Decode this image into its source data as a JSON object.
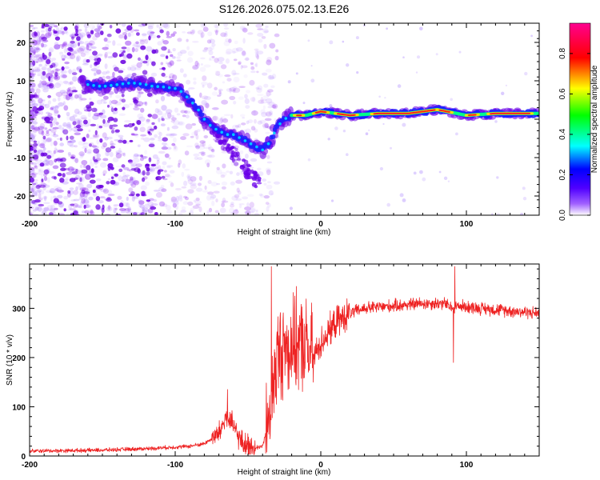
{
  "title": "S126.2026.075.02.13.E26",
  "chart_data": [
    {
      "type": "heatmap",
      "xlabel": "Height of straight line (km)",
      "ylabel": "Frequency (Hz)",
      "xlim": [
        -200,
        150
      ],
      "ylim": [
        -25,
        25
      ],
      "xticks": [
        -200,
        -100,
        0,
        100
      ],
      "xtick_labels": [
        "-200",
        "-100",
        "0",
        "100"
      ],
      "yticks": [
        -20,
        -10,
        0,
        10,
        20
      ],
      "ytick_labels": [
        "-20",
        "-10",
        "0",
        "10",
        "20"
      ],
      "ridge": {
        "x": [
          -160,
          -150,
          -140,
          -130,
          -120,
          -115,
          -110,
          -100,
          -95,
          -90,
          -85,
          -80,
          -75,
          -70,
          -65,
          -60,
          -55,
          -50,
          -45,
          -40,
          -35,
          -30,
          -25,
          -20,
          -15,
          -10,
          -5,
          0,
          10,
          20,
          40,
          60,
          80,
          100,
          120,
          150
        ],
        "y": [
          9,
          8.5,
          9,
          9.5,
          9,
          8.5,
          8.5,
          8,
          7,
          5,
          3,
          0,
          -2,
          -3,
          -4,
          -4,
          -5,
          -6,
          -7,
          -8,
          -6,
          -2,
          0,
          1,
          1,
          1,
          1.5,
          2,
          1.5,
          1,
          1.5,
          1.5,
          2.5,
          1,
          1.5,
          1.5
        ]
      },
      "colorbar": {
        "label": "Normalized spectral amplitude",
        "range": [
          0,
          0.95
        ],
        "ticks": [
          0.0,
          0.2,
          0.4,
          0.6,
          0.8
        ],
        "tick_labels": [
          "0.0",
          "0.2",
          "0.4",
          "0.6",
          "0.8"
        ],
        "colors": [
          "#ffffff",
          "#7b00ff",
          "#0000ff",
          "#00ffff",
          "#00ff00",
          "#ffff00",
          "#ff0000",
          "#ff00aa"
        ]
      }
    },
    {
      "type": "line",
      "xlabel": "Height of straight line (km)",
      "ylabel": "SNR (10 * v/v)",
      "xlim": [
        -200,
        150
      ],
      "ylim": [
        0,
        390
      ],
      "xticks": [
        -200,
        -100,
        0,
        100
      ],
      "xtick_labels": [
        "-200",
        "-100",
        "0",
        "100"
      ],
      "yticks": [
        0,
        100,
        200,
        300
      ],
      "ytick_labels": [
        "0",
        "100",
        "200",
        "300"
      ],
      "color": "#ee2222",
      "envelope": {
        "x": [
          -200,
          -150,
          -120,
          -100,
          -90,
          -80,
          -70,
          -65,
          -60,
          -55,
          -50,
          -45,
          -40,
          -35,
          -30,
          -25,
          -20,
          -15,
          -10,
          -5,
          0,
          10,
          20,
          30,
          50,
          70,
          85,
          90,
          95,
          110,
          130,
          150
        ],
        "y": [
          10,
          12,
          15,
          18,
          20,
          25,
          45,
          80,
          60,
          30,
          20,
          15,
          20,
          80,
          200,
          220,
          220,
          230,
          220,
          200,
          230,
          270,
          290,
          300,
          305,
          310,
          310,
          300,
          305,
          300,
          295,
          290
        ]
      },
      "spikes": [
        {
          "x": -64,
          "y": 135
        },
        {
          "x": -34,
          "y": 385
        },
        {
          "x": -28,
          "y": 285
        },
        {
          "x": -20,
          "y": 260
        },
        {
          "x": 92,
          "y": 385
        },
        {
          "x": 91,
          "y": 190
        }
      ]
    }
  ]
}
